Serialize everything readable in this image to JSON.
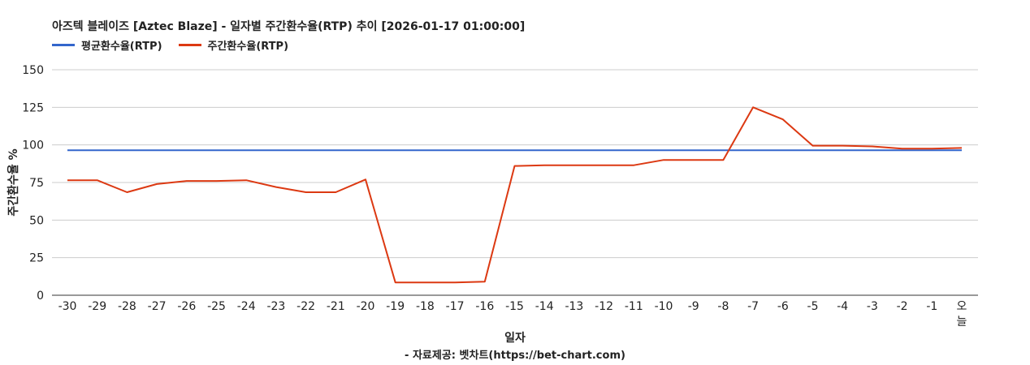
{
  "chart_data": {
    "type": "line",
    "title": "아즈텍 블레이즈 [Aztec Blaze] - 일자별 주간환수율(RTP) 추이 [2026-01-17 01:00:00]",
    "xlabel": "일자",
    "ylabel": "주간환수율 %",
    "footer": "- 자료제공: 벳차트(https://bet-chart.com)",
    "ylim": [
      0,
      150
    ],
    "yticks": [
      "0",
      "25",
      "50",
      "75",
      "100",
      "125",
      "150"
    ],
    "legend_position": "top-left",
    "grid": true,
    "categories": [
      "-30",
      "-29",
      "-28",
      "-27",
      "-26",
      "-25",
      "-24",
      "-23",
      "-22",
      "-21",
      "-20",
      "-19",
      "-18",
      "-17",
      "-16",
      "-15",
      "-14",
      "-13",
      "-12",
      "-11",
      "-10",
      "-9",
      "-8",
      "-7",
      "-6",
      "-5",
      "-4",
      "-3",
      "-2",
      "-1",
      "오늘"
    ],
    "series": [
      {
        "name": "평균환수율(RTP)",
        "color": "#3366cc",
        "values": [
          96.5,
          96.5,
          96.5,
          96.5,
          96.5,
          96.5,
          96.5,
          96.5,
          96.5,
          96.5,
          96.5,
          96.5,
          96.5,
          96.5,
          96.5,
          96.5,
          96.5,
          96.5,
          96.5,
          96.5,
          96.5,
          96.5,
          96.5,
          96.5,
          96.5,
          96.5,
          96.5,
          96.5,
          96.5,
          96.5,
          96.5
        ]
      },
      {
        "name": "주간환수율(RTP)",
        "color": "#dc3912",
        "values": [
          76.5,
          76.5,
          68.5,
          74,
          76,
          76,
          76.5,
          72,
          68.5,
          68.5,
          77,
          8.5,
          8.5,
          8.5,
          9,
          86,
          86.5,
          86.5,
          86.5,
          86.5,
          90,
          90,
          90,
          125,
          117,
          99.5,
          99.5,
          99,
          97.5,
          97.5,
          98
        ]
      }
    ]
  }
}
